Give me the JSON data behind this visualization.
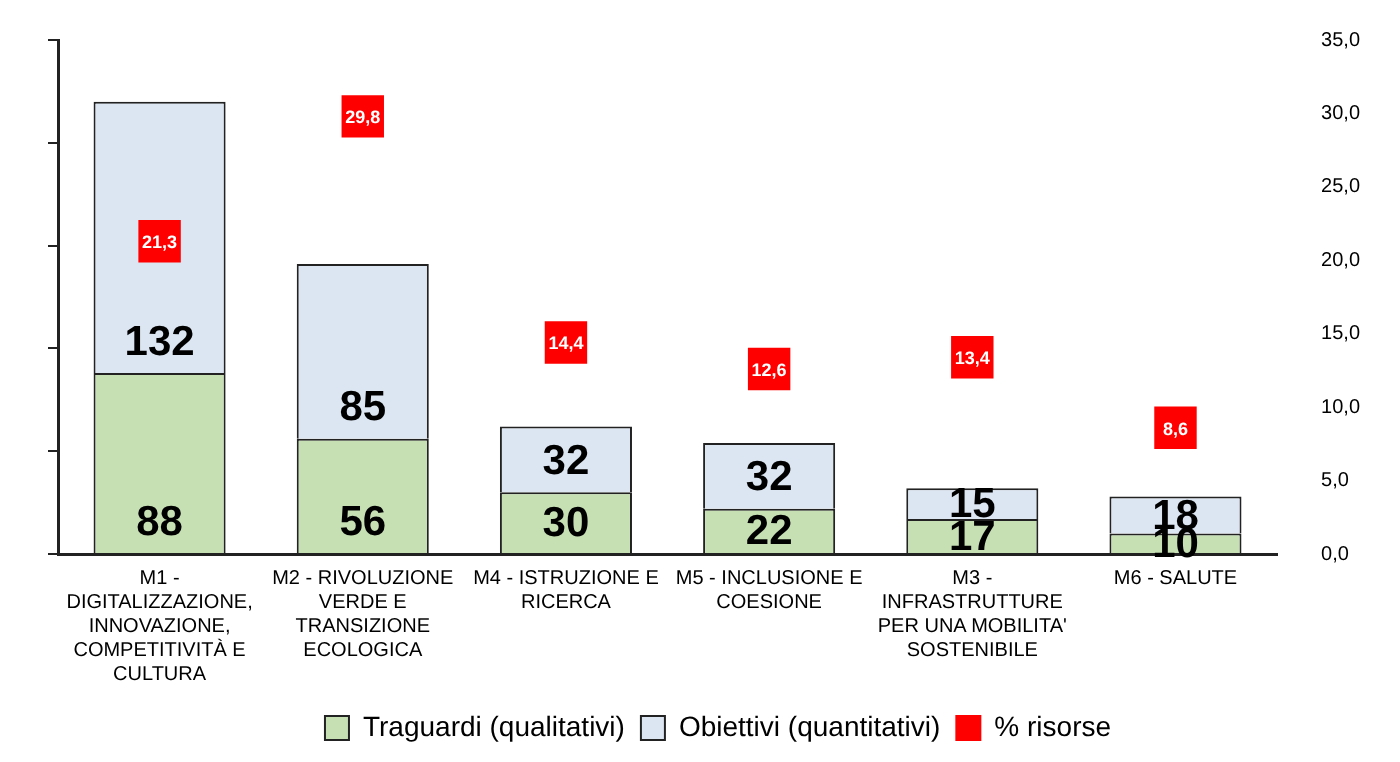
{
  "chart_data": {
    "type": "bar",
    "stacked": true,
    "categories": [
      "M1 - DIGITALIZZAZIONE, INNOVAZIONE, COMPETITIVITÀ E CULTURA",
      "M2 - RIVOLUZIONE VERDE E TRANSIZIONE ECOLOGICA",
      "M4 - ISTRUZIONE E RICERCA",
      "M5 - INCLUSIONE E COESIONE",
      "M3 - INFRASTRUTTURE PER UNA MOBILITA' SOSTENIBILE",
      "M6 - SALUTE"
    ],
    "series": [
      {
        "name": "Traguardi (qualitativi)",
        "color": "#c6e0b4",
        "values": [
          88,
          56,
          30,
          22,
          17,
          10
        ]
      },
      {
        "name": "Obiettivi (quantitativi)",
        "color": "#dce6f2",
        "values": [
          132,
          85,
          32,
          32,
          15,
          18
        ]
      },
      {
        "name": "% risorse",
        "type": "scatter",
        "axis": "y2",
        "marker": "square",
        "color": "#ff0000",
        "values": [
          21.3,
          29.8,
          14.4,
          12.6,
          13.4,
          8.6
        ],
        "value_labels": [
          "21,3",
          "29,8",
          "14,4",
          "12,6",
          "13,4",
          "8,6"
        ]
      }
    ],
    "data_labels": true,
    "ylim": [
      0,
      250
    ],
    "yticks": [
      {
        "value": 0,
        "label": null
      },
      {
        "value": 50,
        "label": null
      },
      {
        "value": 100,
        "label": null
      },
      {
        "value": 150,
        "label": null
      },
      {
        "value": 200,
        "label": null
      },
      {
        "value": 250,
        "label": null
      }
    ],
    "y2lim": [
      0,
      35
    ],
    "y2ticks": [
      {
        "value": 0,
        "label": "0,0"
      },
      {
        "value": 5,
        "label": "5,0"
      },
      {
        "value": 10,
        "label": "10,0"
      },
      {
        "value": 15,
        "label": "15,0"
      },
      {
        "value": 20,
        "label": "20,0"
      },
      {
        "value": 25,
        "label": "25,0"
      },
      {
        "value": 30,
        "label": "30,0"
      },
      {
        "value": 35,
        "label": "35,0"
      }
    ],
    "grid": false,
    "legend": "bottom"
  }
}
